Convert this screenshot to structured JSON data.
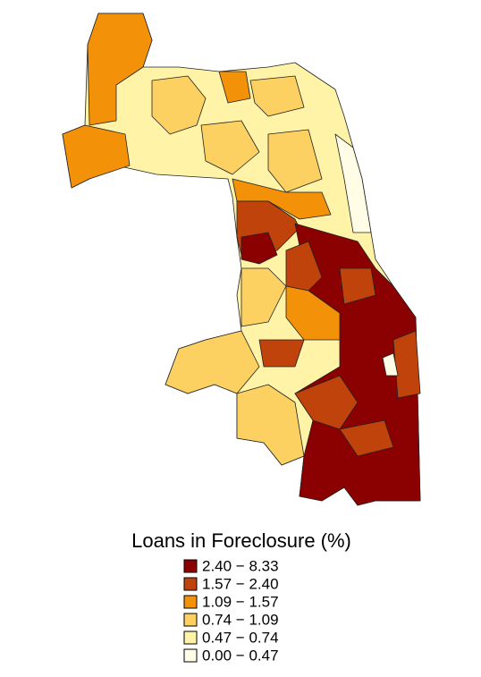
{
  "legend": {
    "title": "Loans in Foreclosure (%)",
    "items": [
      {
        "label": "2.40 − 8.33",
        "color": "#8b0000"
      },
      {
        "label": "1.57 − 2.40",
        "color": "#c0430c"
      },
      {
        "label": "1.09 − 1.57",
        "color": "#f39208"
      },
      {
        "label": "0.74 − 1.09",
        "color": "#fcd061"
      },
      {
        "label": "0.47 − 0.74",
        "color": "#fff3a8"
      },
      {
        "label": "0.00 − 0.47",
        "color": "#fffde6"
      }
    ]
  }
}
